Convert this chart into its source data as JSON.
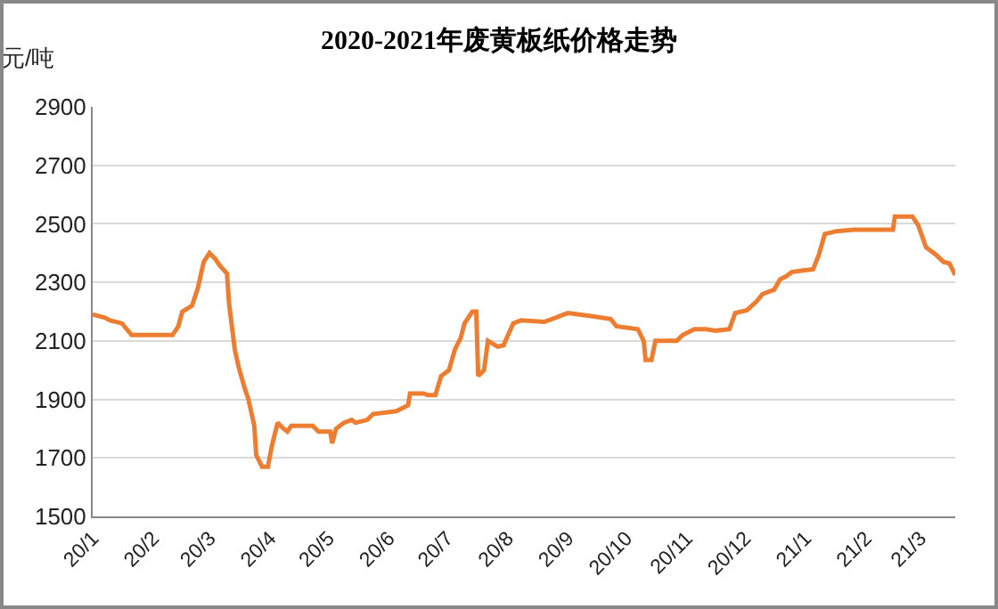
{
  "chart_data": {
    "type": "line",
    "title": "2020-2021年废黄板纸价格走势",
    "ylabel": "元/吨",
    "x": [
      "2020-01-01",
      "2020-01-07",
      "2020-01-10",
      "2020-01-16",
      "2020-01-21",
      "2020-02-11",
      "2020-02-14",
      "2020-02-16",
      "2020-02-21",
      "2020-02-24",
      "2020-02-27",
      "2020-03-01",
      "2020-03-04",
      "2020-03-06",
      "2020-03-10",
      "2020-03-11",
      "2020-03-14",
      "2020-03-16",
      "2020-03-19",
      "2020-03-21",
      "2020-03-24",
      "2020-03-25",
      "2020-03-28",
      "2020-03-31",
      "2020-04-02",
      "2020-04-05",
      "2020-04-08",
      "2020-04-10",
      "2020-04-12",
      "2020-04-23",
      "2020-04-26",
      "2020-05-02",
      "2020-05-03",
      "2020-05-05",
      "2020-05-09",
      "2020-05-13",
      "2020-05-15",
      "2020-05-21",
      "2020-05-24",
      "2020-06-05",
      "2020-06-08",
      "2020-06-11",
      "2020-06-12",
      "2020-06-19",
      "2020-06-21",
      "2020-06-25",
      "2020-06-28",
      "2020-07-02",
      "2020-07-05",
      "2020-07-08",
      "2020-07-10",
      "2020-07-14",
      "2020-07-16",
      "2020-07-17",
      "2020-07-20",
      "2020-07-22",
      "2020-07-27",
      "2020-07-30",
      "2020-08-04",
      "2020-08-08",
      "2020-08-20",
      "2020-08-26",
      "2020-09-01",
      "2020-09-13",
      "2020-09-23",
      "2020-09-26",
      "2020-10-07",
      "2020-10-10",
      "2020-10-11",
      "2020-10-14",
      "2020-10-16",
      "2020-10-27",
      "2020-10-30",
      "2020-11-05",
      "2020-11-11",
      "2020-11-16",
      "2020-11-23",
      "2020-11-26",
      "2020-12-02",
      "2020-12-07",
      "2020-12-10",
      "2020-12-16",
      "2020-12-19",
      "2020-12-22",
      "2020-12-25",
      "2020-12-30",
      "2021-01-05",
      "2021-01-08",
      "2021-01-11",
      "2021-01-17",
      "2021-01-26",
      "2021-02-15",
      "2021-02-16",
      "2021-02-25",
      "2021-02-28",
      "2021-03-04",
      "2021-03-09",
      "2021-03-13",
      "2021-03-16",
      "2021-03-19"
    ],
    "series": [
      {
        "color": "#ed7d31",
        "values": [
          2190,
          2180,
          2170,
          2160,
          2120,
          2120,
          2150,
          2200,
          2220,
          2280,
          2370,
          2400,
          2380,
          2360,
          2330,
          2230,
          2070,
          2010,
          1940,
          1900,
          1810,
          1710,
          1670,
          1670,
          1740,
          1820,
          1800,
          1790,
          1810,
          1810,
          1790,
          1790,
          1750,
          1800,
          1820,
          1830,
          1820,
          1830,
          1850,
          1860,
          1870,
          1880,
          1920,
          1920,
          1915,
          1915,
          1980,
          2000,
          2070,
          2110,
          2160,
          2200,
          2200,
          1980,
          2000,
          2100,
          2080,
          2085,
          2160,
          2170,
          2165,
          2180,
          2195,
          2185,
          2175,
          2150,
          2140,
          2100,
          2035,
          2035,
          2100,
          2100,
          2120,
          2140,
          2140,
          2135,
          2140,
          2195,
          2205,
          2235,
          2260,
          2275,
          2310,
          2320,
          2335,
          2340,
          2345,
          2395,
          2465,
          2475,
          2480,
          2480,
          2525,
          2525,
          2495,
          2420,
          2395,
          2370,
          2365,
          2325
        ]
      }
    ],
    "xlim": [
      "2020-01-01",
      "2021-03-19"
    ],
    "xticks": [
      {
        "value": "2020-01-01",
        "label": "20/1"
      },
      {
        "value": "2020-02-01",
        "label": "20/2"
      },
      {
        "value": "2020-03-01",
        "label": "20/3"
      },
      {
        "value": "2020-04-01",
        "label": "20/4"
      },
      {
        "value": "2020-05-01",
        "label": "20/5"
      },
      {
        "value": "2020-06-01",
        "label": "20/6"
      },
      {
        "value": "2020-07-01",
        "label": "20/7"
      },
      {
        "value": "2020-08-01",
        "label": "20/8"
      },
      {
        "value": "2020-09-01",
        "label": "20/9"
      },
      {
        "value": "2020-10-01",
        "label": "20/10"
      },
      {
        "value": "2020-11-01",
        "label": "20/11"
      },
      {
        "value": "2020-12-01",
        "label": "20/12"
      },
      {
        "value": "2021-01-01",
        "label": "21/1"
      },
      {
        "value": "2021-02-01",
        "label": "21/2"
      },
      {
        "value": "2021-03-01",
        "label": "21/3"
      }
    ],
    "ylim": [
      1500,
      2900
    ],
    "yticks": [
      1500,
      1700,
      1900,
      2100,
      2300,
      2500,
      2700,
      2900
    ],
    "grid": "y",
    "marker": "none",
    "line_style": "solid"
  }
}
